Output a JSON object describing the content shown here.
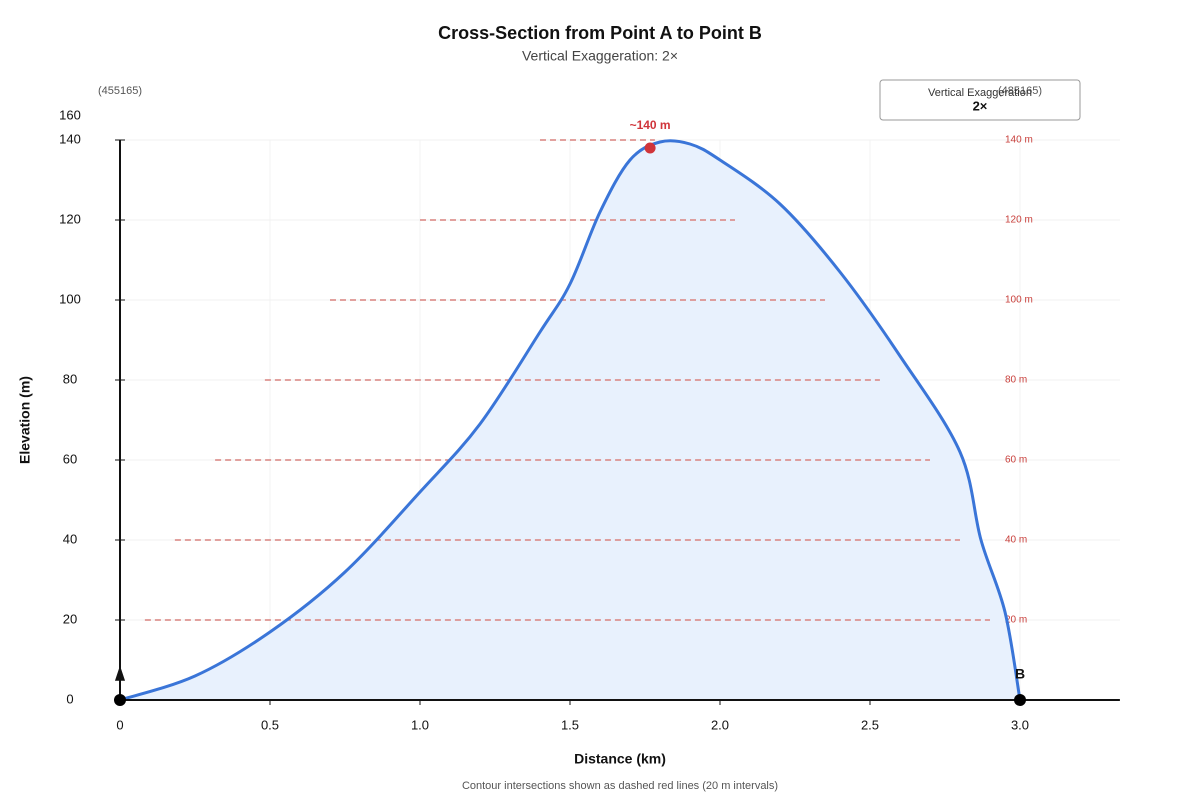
{
  "chart_data": {
    "type": "area",
    "title": "Cross-Section from Point A to Point B",
    "subtitle": "Vertical Exaggeration: 2×",
    "x_label": "Distance (km)",
    "y_label": "Elevation (m)",
    "footnote": "Contour intersections shown as dashed red lines (20 m intervals)",
    "y_axis_top_label": "160",
    "left_coordinate": "(455165)",
    "right_coordinate": "(485165)",
    "legend": {
      "title": "Vertical Exaggeration",
      "value": "2×"
    },
    "end_label": "B",
    "xlim": [
      0,
      3.333
    ],
    "ylim": [
      0,
      140
    ],
    "xticks": [
      0,
      0.5,
      {
        "value": 1,
        "label": "1.0"
      },
      1.5,
      {
        "value": 2,
        "label": "2.0"
      },
      2.5,
      {
        "value": 3,
        "label": "3.0"
      }
    ],
    "yticks": [
      0,
      20,
      40,
      60,
      80,
      100,
      120,
      140
    ],
    "grid": true,
    "color": "#3a75d8",
    "fill": "#e8f1fd",
    "x": [
      0,
      0.25,
      0.5,
      0.75,
      1.0,
      1.2,
      1.4,
      1.5,
      1.6,
      1.7,
      1.8,
      1.9,
      2.0,
      2.2,
      2.4,
      2.6,
      2.8,
      2.87,
      2.95,
      3.0
    ],
    "values": [
      0,
      6,
      17,
      32,
      52,
      69,
      92,
      104,
      122,
      135,
      139.5,
      139,
      135,
      124,
      107,
      86,
      62,
      40,
      22,
      0
    ],
    "peak": {
      "x": 1.767,
      "y": 138,
      "label": "~140 m",
      "color": "#d0343a"
    },
    "contour_color": "#d9827f",
    "contours": [
      {
        "elevation": 20,
        "x_start": 0.083,
        "x_end": 2.9,
        "label": "20 m"
      },
      {
        "elevation": 40,
        "x_start": 0.183,
        "x_end": 2.8,
        "label": "40 m"
      },
      {
        "elevation": 60,
        "x_start": 0.317,
        "x_end": 2.7,
        "label": "60 m"
      },
      {
        "elevation": 80,
        "x_start": 0.483,
        "x_end": 2.533,
        "label": "80 m"
      },
      {
        "elevation": 100,
        "x_start": 0.7,
        "x_end": 2.35,
        "label": "100 m"
      },
      {
        "elevation": 120,
        "x_start": 1.0,
        "x_end": 2.05,
        "label": "120 m"
      },
      {
        "elevation": 140,
        "x_start": 1.4,
        "x_end": 1.783,
        "label": "140 m"
      }
    ],
    "endpoints": [
      {
        "x": 0,
        "y": 0
      },
      {
        "x": 3,
        "y": 0
      }
    ]
  }
}
